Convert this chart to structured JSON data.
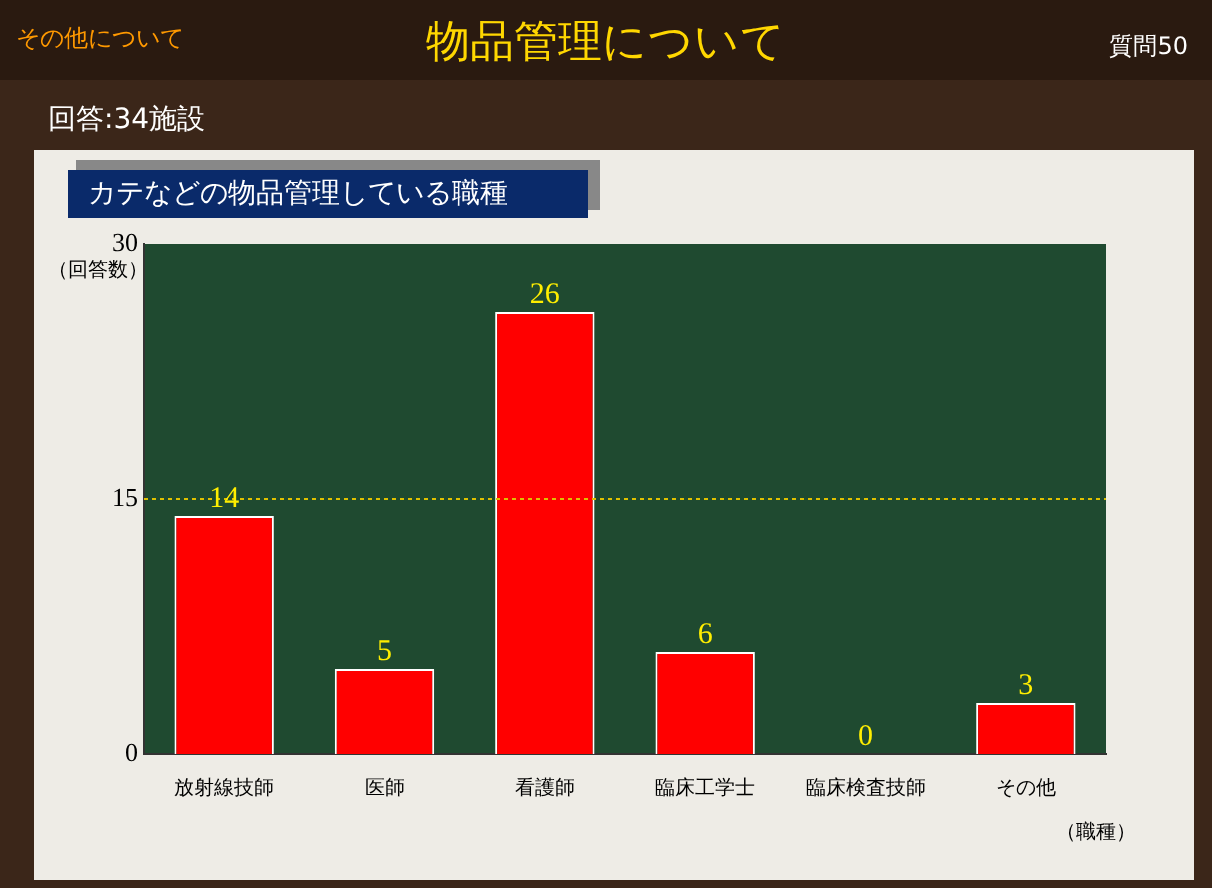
{
  "chart_data": {
    "type": "bar",
    "title": "物品管理について",
    "subtitle": "カテなどの物品管理している職種",
    "annotations": [
      "その他について",
      "質問50",
      "回答:34施設"
    ],
    "ylabel": "（回答数）",
    "xlabel": "（職種）",
    "categories": [
      "放射線技師",
      "医師",
      "看護師",
      "臨床工学士",
      "臨床検査技師",
      "その他"
    ],
    "values": [
      14,
      5,
      26,
      6,
      0,
      3
    ],
    "color": "#ff0000",
    "ylim": [
      0,
      30
    ],
    "yticks": [
      0,
      15,
      30
    ],
    "ref_lines": [
      {
        "axis": "y",
        "value": 15,
        "color": "#e0c000",
        "line_style": "dotted"
      }
    ],
    "data_labels": true,
    "legend": false
  }
}
